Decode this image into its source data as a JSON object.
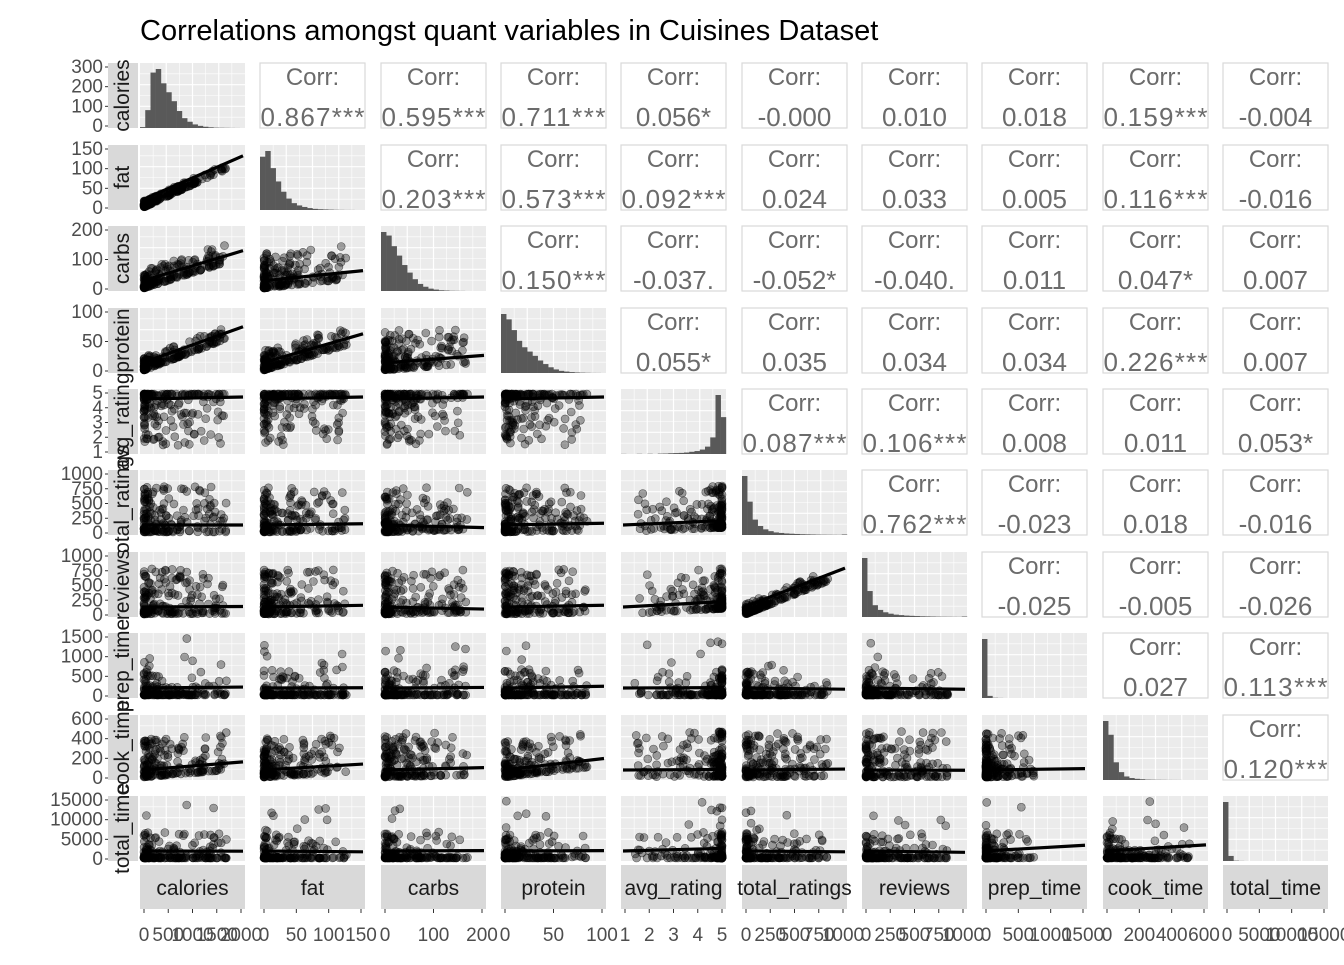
{
  "chart_data": {
    "type": "scatter-matrix",
    "title": "Correlations amongst quant variables in Cuisines Dataset",
    "corr_label": "Corr:",
    "variables": [
      {
        "name": "calories",
        "y_ticks": [
          "0",
          "100",
          "200",
          "300"
        ],
        "x_ticks": [
          "0",
          "500",
          "1000",
          "1500",
          "2000"
        ],
        "hist": [
          5,
          100,
          310,
          330,
          250,
          200,
          150,
          95,
          55,
          35,
          20,
          12,
          7,
          4,
          2,
          1.5,
          1,
          0.6,
          0.3,
          0.2
        ]
      },
      {
        "name": "fat",
        "y_ticks": [
          "0",
          "50",
          "100",
          "150"
        ],
        "x_ticks": [
          "0",
          "50",
          "100",
          "150"
        ],
        "hist": [
          140,
          155,
          110,
          75,
          48,
          30,
          18,
          12,
          8,
          5,
          3,
          2,
          1.5,
          1,
          0.6,
          0.4,
          0.2,
          0.2,
          0.1,
          0.1
        ]
      },
      {
        "name": "carbs",
        "y_ticks": [
          "0",
          "100",
          "200"
        ],
        "x_ticks": [
          "0",
          "100",
          "200"
        ],
        "hist": [
          250,
          235,
          190,
          150,
          110,
          78,
          50,
          30,
          18,
          10,
          6,
          3,
          2,
          1,
          0.7,
          0.4,
          0.2,
          0.1,
          0.1,
          0.1
        ]
      },
      {
        "name": "protein",
        "y_ticks": [
          "0",
          "50",
          "100"
        ],
        "x_ticks": [
          "0",
          "50",
          "100"
        ],
        "hist": [
          165,
          150,
          120,
          90,
          72,
          60,
          48,
          35,
          25,
          16,
          10,
          6,
          4,
          2.5,
          1.5,
          1,
          0.6,
          0.3,
          0.2,
          0.1
        ]
      },
      {
        "name": "avg_rating",
        "y_ticks": [
          "1",
          "2",
          "3",
          "4",
          "5"
        ],
        "x_ticks": [
          "1",
          "2",
          "3",
          "4",
          "5"
        ],
        "hist": [
          0.3,
          0,
          0,
          0.5,
          0,
          0.6,
          0,
          1,
          1.2,
          2,
          2.5,
          3,
          4,
          6,
          8,
          12,
          20,
          45,
          160,
          100
        ]
      },
      {
        "name": "total_ratings",
        "y_ticks": [
          "0",
          "250",
          "500",
          "750",
          "1000"
        ],
        "x_ticks": [
          "0",
          "250",
          "500",
          "750",
          "1000"
        ],
        "hist": [
          230,
          130,
          60,
          35,
          22,
          15,
          10,
          8,
          6,
          5,
          4,
          3,
          2.5,
          2,
          1.5,
          1.2,
          1,
          0.8,
          0.6,
          2
        ]
      },
      {
        "name": "reviews",
        "y_ticks": [
          "0",
          "250",
          "500",
          "750",
          "1000"
        ],
        "x_ticks": [
          "0",
          "250",
          "500",
          "750",
          "1000"
        ],
        "hist": [
          250,
          110,
          50,
          30,
          20,
          14,
          10,
          8,
          6,
          5,
          4,
          3,
          2.5,
          2,
          1.5,
          1.2,
          1,
          0.8,
          0.6,
          2
        ]
      },
      {
        "name": "prep_time",
        "y_ticks": [
          "0",
          "500",
          "1000",
          "1500"
        ],
        "x_ticks": [
          "0",
          "500",
          "1000",
          "1500"
        ],
        "hist": [
          700,
          25,
          3,
          1,
          0.5,
          0.3,
          0.2,
          0.1,
          0.1,
          0.1,
          0.1,
          0.1,
          0.1,
          0.1,
          0.1,
          0.1,
          0.1,
          0.1,
          0.1,
          0.1
        ]
      },
      {
        "name": "cook_time",
        "y_ticks": [
          "0",
          "200",
          "400",
          "600"
        ],
        "x_ticks": [
          "0",
          "200",
          "400",
          "600"
        ],
        "hist": [
          300,
          230,
          90,
          40,
          18,
          10,
          6,
          4,
          2,
          1.5,
          1,
          0.8,
          0.5,
          0.4,
          0.3,
          0.2,
          0.2,
          0.1,
          0.1,
          0.1
        ]
      },
      {
        "name": "total_time",
        "y_ticks": [
          "0",
          "5000",
          "10000",
          "15000"
        ],
        "x_ticks": [
          "0",
          "5000",
          "10000",
          "15000"
        ],
        "hist": [
          700,
          60,
          4,
          1,
          0.5,
          0.3,
          0.2,
          0.1,
          0.1,
          0.1,
          0.1,
          0.1,
          0.1,
          0.1,
          0.1,
          0.1,
          0.1,
          0.1,
          0.1,
          0.1
        ]
      }
    ],
    "correlations": [
      [
        "",
        "0.867***",
        "0.595***",
        "0.711***",
        "0.056*",
        "-0.000",
        "0.010",
        "0.018",
        "0.159***",
        "-0.004"
      ],
      [
        "",
        "",
        "0.203***",
        "0.573***",
        "0.092***",
        "0.024",
        "0.033",
        "0.005",
        "0.116***",
        "-0.016"
      ],
      [
        "",
        "",
        "",
        "0.150***",
        "-0.037.",
        "-0.052*",
        "-0.040.",
        "0.011",
        "0.047*",
        "0.007"
      ],
      [
        "",
        "",
        "",
        "",
        "0.055*",
        "0.035",
        "0.034",
        "0.034",
        "0.226***",
        "0.007"
      ],
      [
        "",
        "",
        "",
        "",
        "",
        "0.087***",
        "0.106***",
        "0.008",
        "0.011",
        "0.053*"
      ],
      [
        "",
        "",
        "",
        "",
        "",
        "",
        "0.762***",
        "-0.023",
        "0.018",
        "-0.016"
      ],
      [
        "",
        "",
        "",
        "",
        "",
        "",
        "",
        "-0.025",
        "-0.005",
        "-0.026"
      ],
      [
        "",
        "",
        "",
        "",
        "",
        "",
        "",
        "",
        "0.027",
        "0.113***"
      ],
      [
        "",
        "",
        "",
        "",
        "",
        "",
        "",
        "",
        "",
        "0.120***"
      ],
      [
        "",
        "",
        "",
        "",
        "",
        "",
        "",
        "",
        "",
        ""
      ]
    ],
    "colors": {
      "panel_bg": "#ebebeb",
      "grid": "#ffffff",
      "strip": "#d9d9d9",
      "corr_text": "#6b6b6b",
      "points": "#000000",
      "bars": "#595959",
      "axis_text": "#4d4d4d"
    }
  }
}
